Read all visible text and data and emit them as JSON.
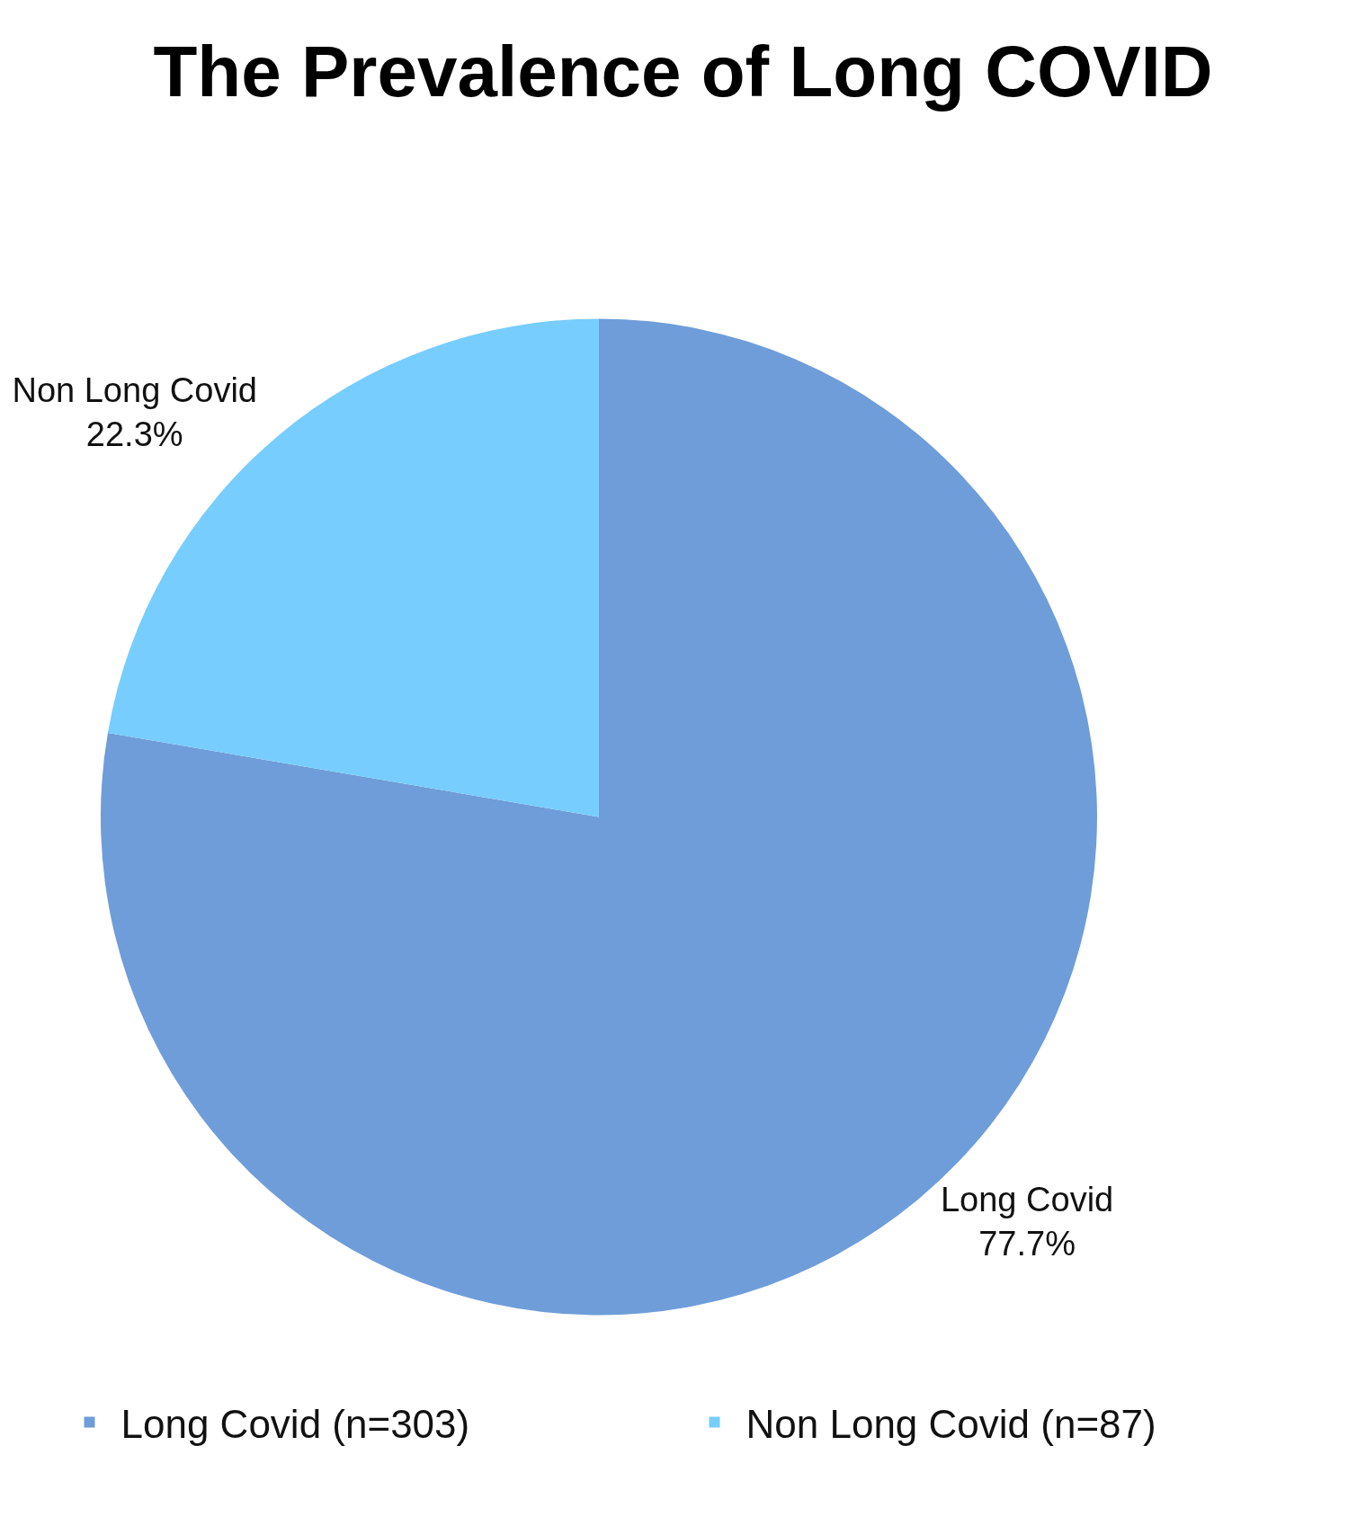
{
  "chart_data": {
    "type": "pie",
    "title": "The Prevalence of Long COVID",
    "categories": [
      "Long Covid (n=303)",
      "Non Long Covid (n=87)"
    ],
    "values": [
      77.7,
      22.3
    ],
    "colors": [
      "#6f9dd9",
      "#77cdfe"
    ],
    "value_labels": [
      "Long Covid\n77.7%",
      "Non Long Covid\n22.3%"
    ],
    "legend": "bottom"
  }
}
